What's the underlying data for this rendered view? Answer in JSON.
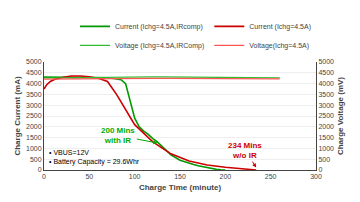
{
  "chart_data": {
    "type": "line",
    "xlabel": "Charge Time (minute)",
    "ylabel": "Charge Current (mA)",
    "y2label": "Charge Voltage (mV)",
    "xlim": [
      0,
      300
    ],
    "xticks": [
      0,
      50,
      100,
      150,
      200,
      250,
      300
    ],
    "ylim": [
      0,
      5000
    ],
    "yticks": [
      0,
      500,
      1000,
      1500,
      2000,
      2500,
      3000,
      3500,
      4000,
      4500,
      5000
    ],
    "y2lim": [
      0,
      5000
    ],
    "y2ticks": [
      0,
      500,
      1000,
      1500,
      2000,
      2500,
      3000,
      3500,
      4000,
      4500,
      5000
    ],
    "grid": true,
    "legend": "upper right",
    "series": [
      {
        "name": "Current (Ichg=4.5A,IRcomp)",
        "color": "#009900",
        "x": [
          0,
          10,
          20,
          30,
          40,
          50,
          55,
          60,
          65,
          67,
          70,
          75,
          80,
          85,
          90,
          95,
          100,
          105,
          110,
          115,
          120,
          125,
          130,
          135,
          140,
          150,
          160,
          165,
          170,
          175,
          180,
          185,
          190,
          195,
          200
        ],
        "values": [
          4300,
          4300,
          4300,
          4300,
          4300,
          4300,
          4300,
          4300,
          4300,
          4290,
          4270,
          4250,
          4220,
          4180,
          4000,
          3200,
          2400,
          2000,
          1800,
          1650,
          1450,
          1300,
          1100,
          900,
          700,
          450,
          300,
          250,
          200,
          150,
          100,
          60,
          30,
          10,
          0
        ]
      },
      {
        "name": "Current (Ichg=4.5A)",
        "color": "#cc0000",
        "x": [
          0,
          3,
          7,
          12,
          20,
          30,
          40,
          50,
          60,
          70,
          80,
          90,
          100,
          120,
          140,
          160,
          180,
          200,
          215,
          225,
          230,
          234
        ],
        "values": [
          3750,
          3950,
          4100,
          4200,
          4280,
          4350,
          4350,
          4320,
          4250,
          4100,
          3500,
          2800,
          2100,
          1300,
          750,
          420,
          230,
          130,
          80,
          40,
          15,
          0
        ]
      },
      {
        "name": "Voltage (Ichg=4.5A,IRComp)",
        "color": "#33bb33",
        "axis": "y2",
        "x": [
          0,
          10,
          20,
          30,
          40,
          50,
          60,
          70,
          80,
          90,
          100,
          110,
          120,
          130,
          140,
          150,
          160,
          170,
          180,
          190,
          200,
          250,
          260
        ],
        "values": [
          4260,
          4265,
          4270,
          4285,
          4300,
          4310,
          4315,
          4315,
          4315,
          4315,
          4315,
          4315,
          4315,
          4310,
          4305,
          4300,
          4295,
          4290,
          4285,
          4280,
          4275,
          4270,
          4265
        ]
      },
      {
        "name": "Voltage(Ichg=4.5A)",
        "color": "#ff5555",
        "axis": "y2",
        "x": [
          0,
          10,
          20,
          30,
          40,
          50,
          60,
          70,
          80,
          90,
          100,
          120,
          140,
          160,
          180,
          200,
          210,
          220,
          230,
          234,
          250,
          260
        ],
        "values": [
          4210,
          4215,
          4220,
          4228,
          4232,
          4235,
          4238,
          4240,
          4242,
          4242,
          4242,
          4242,
          4242,
          4242,
          4242,
          4242,
          4242,
          4240,
          4235,
          4230,
          4225,
          4220
        ]
      }
    ],
    "annotations": [
      {
        "text": "200 Mins\nwith IR",
        "x": 125,
        "y": 1250,
        "text_x": 82,
        "text_y": 1600,
        "color": "#00aa00"
      },
      {
        "text": "234 Mins\nw/o IR",
        "x": 234,
        "y": 120,
        "text_x": 222,
        "text_y": 900,
        "color": "#cc0000"
      },
      {
        "text": "• VBUS=12V"
      },
      {
        "text": "• Battery Capacity = 29.6Whr"
      }
    ]
  }
}
